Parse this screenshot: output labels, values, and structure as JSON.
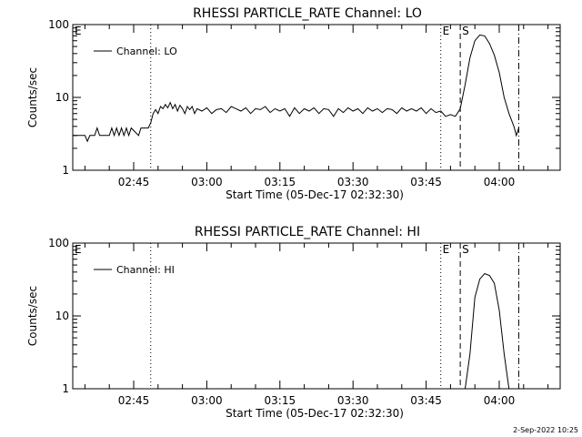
{
  "footer": {
    "date": "2-Sep-2022 10:25"
  },
  "chart_data": [
    {
      "type": "line",
      "title": "RHESSI PARTICLE_RATE Channel: LO",
      "xlabel": "Start Time (05-Dec-17 02:32:30)",
      "ylabel": "Counts/sec",
      "y_scale": "log",
      "ylim": [
        1,
        100
      ],
      "xlim": [
        "02:32:30",
        "04:12:30"
      ],
      "x_ticks": [
        "02:45",
        "03:00",
        "03:15",
        "03:30",
        "03:45",
        "04:00"
      ],
      "y_ticks": [
        "1",
        "10",
        "100"
      ],
      "legend": {
        "position": "top-left",
        "entries": [
          "Channel: LO"
        ]
      },
      "markers": [
        {
          "label": "E",
          "time": "02:32:30",
          "style": "none"
        },
        {
          "label": "",
          "time": "02:48:30",
          "style": "dotted"
        },
        {
          "label": "E",
          "time": "03:48:00",
          "style": "dotted"
        },
        {
          "label": "S",
          "time": "03:52:00",
          "style": "dashed"
        },
        {
          "label": "",
          "time": "04:04:00",
          "style": "dashdot"
        }
      ],
      "series": [
        {
          "name": "Channel: LO",
          "x": [
            "02:32:30",
            "02:35:00",
            "02:35:30",
            "02:36:00",
            "02:37:00",
            "02:37:30",
            "02:38:00",
            "02:40:00",
            "02:40:30",
            "02:41:00",
            "02:41:30",
            "02:42:00",
            "02:42:30",
            "02:43:00",
            "02:43:30",
            "02:44:00",
            "02:44:30",
            "02:46:00",
            "02:46:30",
            "02:48:00",
            "02:48:30",
            "02:49:00",
            "02:49:30",
            "02:50:00",
            "02:50:30",
            "02:51:00",
            "02:51:30",
            "02:52:00",
            "02:52:30",
            "02:53:00",
            "02:53:30",
            "02:54:00",
            "02:54:30",
            "02:55:00",
            "02:55:30",
            "02:56:00",
            "02:56:30",
            "02:57:00",
            "02:57:30",
            "02:58:00",
            "02:59:00",
            "03:00:00",
            "03:01:00",
            "03:02:00",
            "03:03:00",
            "03:04:00",
            "03:05:00",
            "03:06:00",
            "03:07:00",
            "03:08:00",
            "03:09:00",
            "03:10:00",
            "03:11:00",
            "03:12:00",
            "03:13:00",
            "03:14:00",
            "03:15:00",
            "03:16:00",
            "03:17:00",
            "03:18:00",
            "03:19:00",
            "03:20:00",
            "03:21:00",
            "03:22:00",
            "03:23:00",
            "03:24:00",
            "03:25:00",
            "03:26:00",
            "03:27:00",
            "03:28:00",
            "03:29:00",
            "03:30:00",
            "03:31:00",
            "03:32:00",
            "03:33:00",
            "03:34:00",
            "03:35:00",
            "03:36:00",
            "03:37:00",
            "03:38:00",
            "03:39:00",
            "03:40:00",
            "03:41:00",
            "03:42:00",
            "03:43:00",
            "03:44:00",
            "03:45:00",
            "03:46:00",
            "03:47:00",
            "03:48:00",
            "03:49:00",
            "03:50:00",
            "03:51:00",
            "03:52:00",
            "03:53:00",
            "03:54:00",
            "03:55:00",
            "03:56:00",
            "03:57:00",
            "03:58:00",
            "03:59:00",
            "04:00:00",
            "04:01:00",
            "04:02:00",
            "04:03:00",
            "04:03:30",
            "04:04:00"
          ],
          "values": [
            3.0,
            3.0,
            2.5,
            3.0,
            3.0,
            3.8,
            3.0,
            3.0,
            3.8,
            3.0,
            3.8,
            3.0,
            3.8,
            3.0,
            3.8,
            3.0,
            3.8,
            3.0,
            3.8,
            3.8,
            4.5,
            6.0,
            6.8,
            6.0,
            7.5,
            7.0,
            8.0,
            7.2,
            8.5,
            7.0,
            8.0,
            6.5,
            7.8,
            7.0,
            6.0,
            7.5,
            6.8,
            7.5,
            6.0,
            7.0,
            6.5,
            7.2,
            6.0,
            6.8,
            7.0,
            6.2,
            7.5,
            7.0,
            6.5,
            7.2,
            6.0,
            7.0,
            6.8,
            7.5,
            6.2,
            7.0,
            6.5,
            7.0,
            5.5,
            7.2,
            6.0,
            7.0,
            6.5,
            7.2,
            6.0,
            7.0,
            6.8,
            5.5,
            7.0,
            6.2,
            7.2,
            6.5,
            7.0,
            6.0,
            7.2,
            6.5,
            7.0,
            6.2,
            7.0,
            6.8,
            6.0,
            7.2,
            6.5,
            7.0,
            6.5,
            7.2,
            6.0,
            7.0,
            6.2,
            6.5,
            5.5,
            5.8,
            5.5,
            7.0,
            15,
            35,
            60,
            72,
            70,
            55,
            38,
            22,
            10,
            6.0,
            4.0,
            3.0,
            3.8
          ]
        }
      ]
    },
    {
      "type": "line",
      "title": "RHESSI PARTICLE_RATE Channel: HI",
      "xlabel": "Start Time (05-Dec-17 02:32:30)",
      "ylabel": "Counts/sec",
      "y_scale": "log",
      "ylim": [
        1,
        100
      ],
      "xlim": [
        "02:32:30",
        "04:12:30"
      ],
      "x_ticks": [
        "02:45",
        "03:00",
        "03:15",
        "03:30",
        "03:45",
        "04:00"
      ],
      "y_ticks": [
        "1",
        "10",
        "100"
      ],
      "legend": {
        "position": "top-left",
        "entries": [
          "Channel: HI"
        ]
      },
      "markers": [
        {
          "label": "E",
          "time": "02:32:30",
          "style": "none"
        },
        {
          "label": "",
          "time": "02:48:30",
          "style": "dotted"
        },
        {
          "label": "E",
          "time": "03:48:00",
          "style": "dotted"
        },
        {
          "label": "S",
          "time": "03:52:00",
          "style": "dashed"
        },
        {
          "label": "",
          "time": "04:04:00",
          "style": "dashdot"
        }
      ],
      "series": [
        {
          "name": "Channel: HI",
          "x": [
            "03:53:00",
            "03:54:00",
            "03:55:00",
            "03:56:00",
            "03:57:00",
            "03:58:00",
            "03:59:00",
            "04:00:00",
            "04:01:00",
            "04:02:00"
          ],
          "values": [
            1.0,
            3.0,
            18,
            32,
            38,
            36,
            28,
            12,
            3.0,
            1.0
          ]
        }
      ]
    }
  ]
}
